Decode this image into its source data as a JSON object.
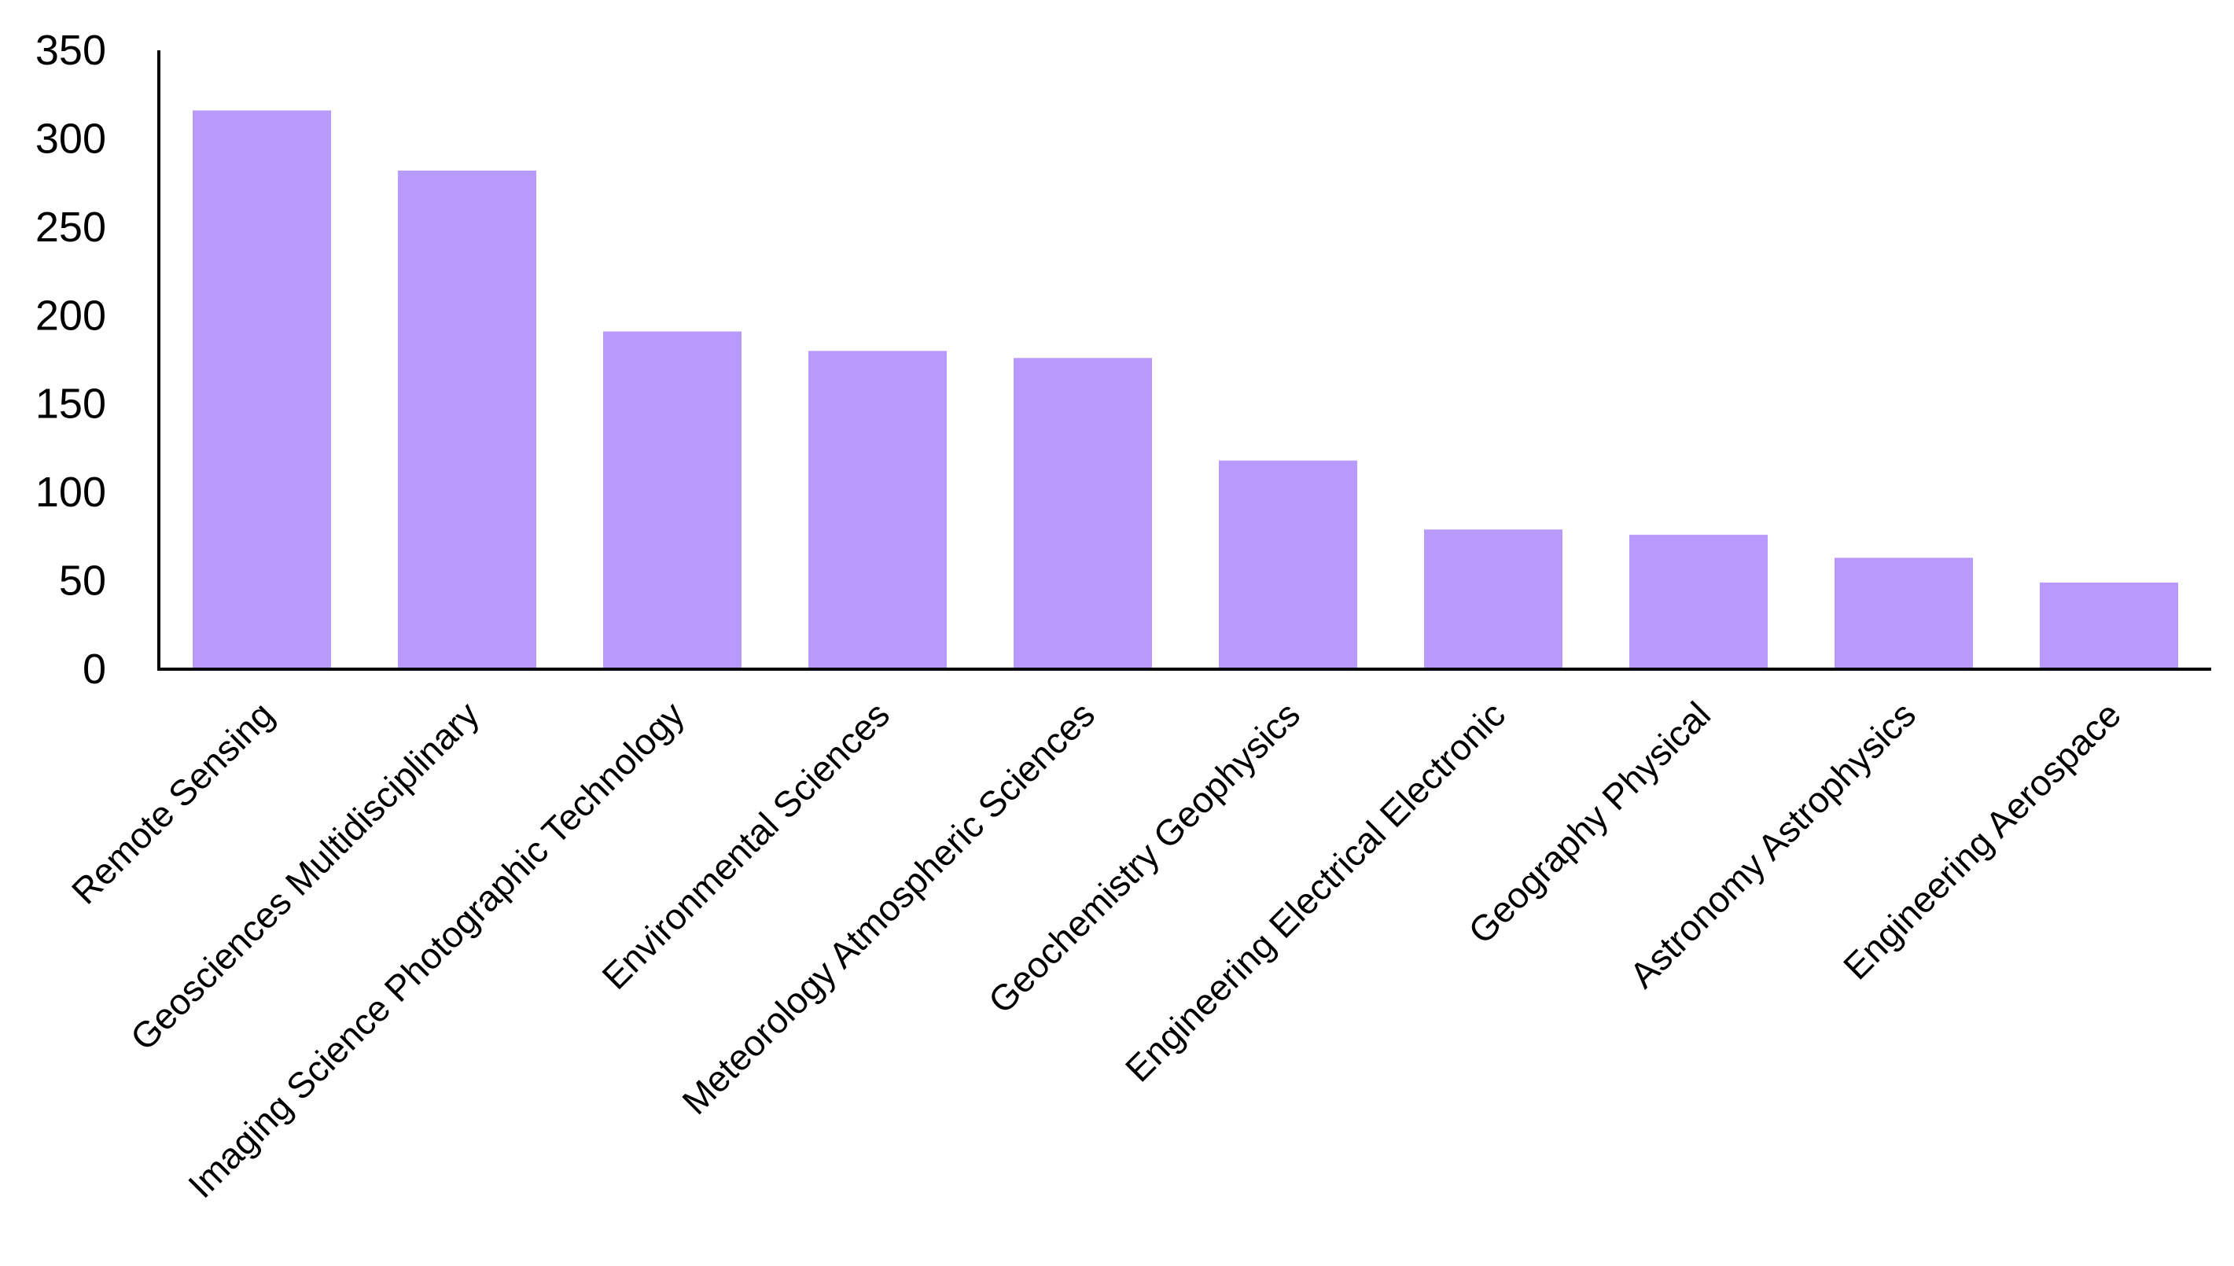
{
  "chart_data": {
    "type": "bar",
    "categories": [
      "Remote Sensing",
      "Geosciences Multidisciplinary",
      "Imaging Science Photographic Technology",
      "Environmental Sciences",
      "Meteorology Atmospheric Sciences",
      "Geochemistry Geophysics",
      "Engineering Electrical Electronic",
      "Geography Physical",
      "Astronomy Astrophysics",
      "Engineering Aerospace"
    ],
    "values": [
      316,
      282,
      191,
      180,
      176,
      118,
      79,
      76,
      63,
      49
    ],
    "title": "",
    "xlabel": "",
    "ylabel": "",
    "ylim": [
      0,
      350
    ],
    "yticks": [
      0,
      50,
      100,
      150,
      200,
      250,
      300,
      350
    ],
    "grid": false,
    "legend": "none",
    "bar_color": "#b899fc",
    "axis_color": "#000000"
  }
}
